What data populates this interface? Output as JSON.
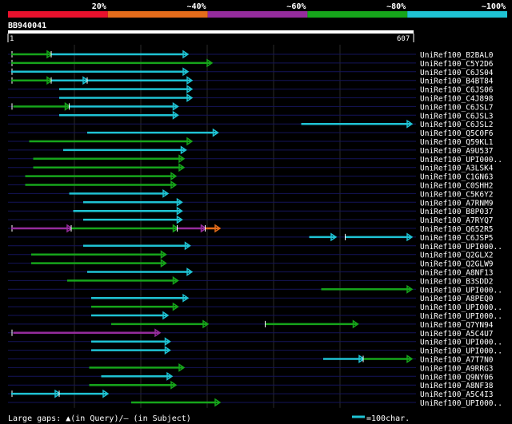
{
  "colors": {
    "background": "#000000",
    "text": "#ffffff",
    "grid": "#2a2a2a",
    "rowline": "#14145a",
    "bin_red": "#e8112d",
    "bin_orange": "#e46c1b",
    "bin_purple": "#952c9d",
    "bin_green": "#16a51b",
    "bin_cyan": "#1fc3d4"
  },
  "legend": {
    "bins": [
      {
        "label": "20%",
        "color": "#e8112d"
      },
      {
        "label": "~40%",
        "color": "#e46c1b"
      },
      {
        "label": "~60%",
        "color": "#952c9d"
      },
      {
        "label": "~80%",
        "color": "#16a51b"
      },
      {
        "label": "~100%",
        "color": "#1fc3d4"
      }
    ]
  },
  "query": {
    "id": "BB940041",
    "start_label": "1",
    "end_label": "607",
    "length": 607
  },
  "footer": {
    "gaps_text": "Large gaps: ▲(in Query)/– (in Subject)",
    "scale_text": "=100char."
  },
  "hits": [
    {
      "name": "UniRef100_B2BAL0",
      "segs": [
        [
          0,
          20,
          "green"
        ],
        [
          20,
          88,
          "cyan"
        ]
      ],
      "start_tick": true
    },
    {
      "name": "UniRef100_C5Y2D6",
      "segs": [
        [
          0,
          100,
          "green"
        ]
      ],
      "start_tick": true
    },
    {
      "name": "UniRef100_C6JS04",
      "segs": [
        [
          0,
          88,
          "cyan"
        ]
      ],
      "start_tick": true
    },
    {
      "name": "UniRef100_B4BT84",
      "segs": [
        [
          0,
          20,
          "green"
        ],
        [
          20,
          38,
          "cyan"
        ],
        [
          38,
          90,
          "cyan"
        ]
      ],
      "start_tick": true
    },
    {
      "name": "UniRef100_C6JS06",
      "segs": [
        [
          24,
          90,
          "cyan"
        ]
      ]
    },
    {
      "name": "UniRef100_C4J898",
      "segs": [
        [
          24,
          90,
          "cyan"
        ]
      ]
    },
    {
      "name": "UniRef100_C6JSL7",
      "segs": [
        [
          1,
          29,
          "green"
        ],
        [
          29,
          83,
          "cyan"
        ]
      ],
      "start_tick": true
    },
    {
      "name": "UniRef100_C6JSL3",
      "segs": [
        [
          24,
          83,
          "cyan"
        ]
      ]
    },
    {
      "name": "UniRef100_C6JSL2",
      "segs": [
        [
          145,
          200,
          "cyan"
        ]
      ]
    },
    {
      "name": "UniRef100_Q5C0F6",
      "segs": [
        [
          38,
          103,
          "cyan"
        ]
      ]
    },
    {
      "name": "UniRef100_Q59KL1",
      "segs": [
        [
          9,
          90,
          "green"
        ]
      ]
    },
    {
      "name": "UniRef100_A9U537",
      "segs": [
        [
          26,
          87,
          "cyan"
        ]
      ]
    },
    {
      "name": "UniRef100_UPI000..",
      "segs": [
        [
          11,
          86,
          "green"
        ]
      ]
    },
    {
      "name": "UniRef100_A3LSK4",
      "segs": [
        [
          11,
          86,
          "green"
        ]
      ]
    },
    {
      "name": "UniRef100_C1GN63",
      "segs": [
        [
          7,
          82,
          "green"
        ]
      ]
    },
    {
      "name": "UniRef100_C0SHH2",
      "segs": [
        [
          7,
          82,
          "green"
        ]
      ]
    },
    {
      "name": "UniRef100_C5K6Y2",
      "segs": [
        [
          29,
          78,
          "cyan"
        ]
      ]
    },
    {
      "name": "UniRef100_A7RNM9",
      "segs": [
        [
          36,
          85,
          "cyan"
        ]
      ]
    },
    {
      "name": "UniRef100_B8P037",
      "segs": [
        [
          31,
          85,
          "cyan"
        ]
      ]
    },
    {
      "name": "UniRef100_A7RYQ7",
      "segs": [
        [
          36,
          85,
          "cyan"
        ]
      ]
    },
    {
      "name": "UniRef100_Q652R5",
      "segs": [
        [
          0,
          30,
          "purple"
        ],
        [
          30,
          83,
          "green"
        ],
        [
          83,
          97,
          "purple"
        ],
        [
          97,
          104,
          "orange"
        ]
      ],
      "start_tick": true
    },
    {
      "name": "UniRef100_C6JSP5",
      "segs": [
        [
          149,
          162,
          "cyan"
        ],
        [
          162,
          167,
          "gap"
        ],
        [
          167,
          200,
          "cyan"
        ]
      ]
    },
    {
      "name": "UniRef100_UPI000..",
      "segs": [
        [
          36,
          89,
          "cyan"
        ]
      ]
    },
    {
      "name": "UniRef100_Q2GLX2",
      "segs": [
        [
          10,
          77,
          "green"
        ]
      ]
    },
    {
      "name": "UniRef100_Q2GLW9",
      "segs": [
        [
          10,
          77,
          "green"
        ]
      ]
    },
    {
      "name": "UniRef100_A8NF13",
      "segs": [
        [
          38,
          90,
          "cyan"
        ]
      ]
    },
    {
      "name": "UniRef100_B3SDD2",
      "segs": [
        [
          28,
          83,
          "green"
        ]
      ]
    },
    {
      "name": "UniRef100_UPI000..",
      "segs": [
        [
          155,
          200,
          "green"
        ]
      ]
    },
    {
      "name": "UniRef100_A8PEQ0",
      "segs": [
        [
          40,
          88,
          "cyan"
        ]
      ]
    },
    {
      "name": "UniRef100_UPI000..",
      "segs": [
        [
          40,
          83,
          "green"
        ]
      ]
    },
    {
      "name": "UniRef100_UPI000..",
      "segs": [
        [
          40,
          78,
          "cyan"
        ]
      ]
    },
    {
      "name": "UniRef100_Q7YN94",
      "segs": [
        [
          50,
          98,
          "green"
        ],
        [
          127,
          173,
          "green"
        ]
      ]
    },
    {
      "name": "UniRef100_A5C4U7",
      "segs": [
        [
          1,
          74,
          "purple"
        ]
      ],
      "start_tick": true
    },
    {
      "name": "UniRef100_UPI000..",
      "segs": [
        [
          40,
          79,
          "cyan"
        ]
      ]
    },
    {
      "name": "UniRef100_UPI000..",
      "segs": [
        [
          40,
          79,
          "cyan"
        ]
      ]
    },
    {
      "name": "UniRef100_A7T7N0",
      "segs": [
        [
          156,
          176,
          "cyan"
        ],
        [
          176,
          200,
          "green"
        ]
      ]
    },
    {
      "name": "UniRef100_A9RRG3",
      "segs": [
        [
          39,
          86,
          "green"
        ]
      ]
    },
    {
      "name": "UniRef100_Q9NY06",
      "segs": [
        [
          45,
          80,
          "cyan"
        ]
      ]
    },
    {
      "name": "UniRef100_A8NF38",
      "segs": [
        [
          39,
          82,
          "green"
        ]
      ]
    },
    {
      "name": "UniRef100_A5C4I3",
      "segs": [
        [
          0,
          24,
          "cyan"
        ],
        [
          24,
          48,
          "cyan"
        ]
      ],
      "start_tick": true
    },
    {
      "name": "UniRef100_UPI000..",
      "segs": [
        [
          60,
          104,
          "green"
        ]
      ]
    }
  ]
}
